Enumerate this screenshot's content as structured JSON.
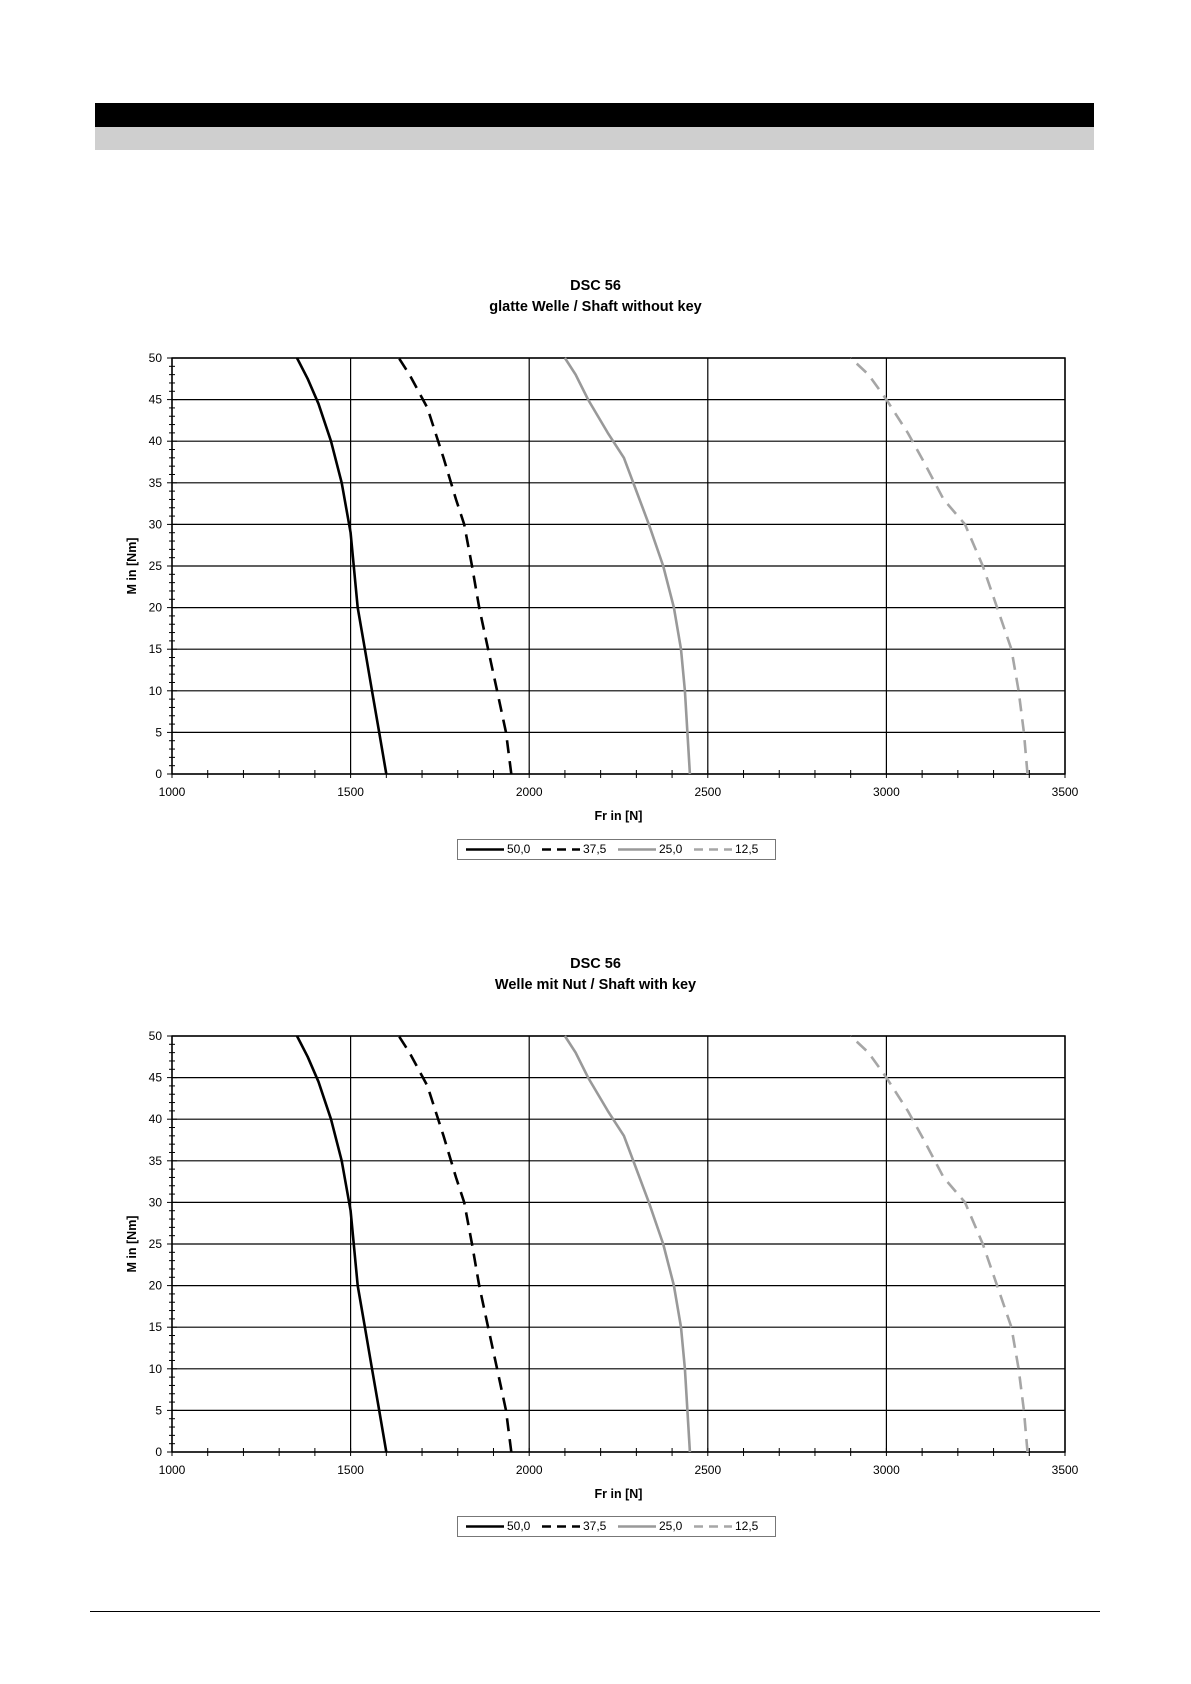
{
  "chart_data": [
    {
      "type": "line",
      "title": "DSC 56",
      "subtitle": "glatte Welle / Shaft without key",
      "xlabel": "Fr in [N]",
      "ylabel": "M in [Nm]",
      "xlim": [
        1000,
        3500
      ],
      "ylim": [
        0,
        50
      ],
      "xticks": [
        1000,
        1500,
        2000,
        2500,
        3000,
        3500
      ],
      "yticks": [
        0,
        5,
        10,
        15,
        20,
        25,
        30,
        35,
        40,
        45,
        50
      ],
      "grid": true,
      "legend_position": "bottom",
      "series": [
        {
          "name": "50,0",
          "color": "#000000",
          "style": "solid",
          "x": [
            1600,
            1580,
            1560,
            1540,
            1520,
            1500,
            1475,
            1445,
            1410,
            1380,
            1350
          ],
          "y": [
            0,
            5,
            10,
            15,
            20,
            29,
            35,
            40,
            44.5,
            47.5,
            50
          ]
        },
        {
          "name": "37,5",
          "color": "#000000",
          "style": "dashed",
          "x": [
            1950,
            1935,
            1910,
            1885,
            1860,
            1840,
            1818,
            1795,
            1760,
            1715,
            1665,
            1635
          ],
          "y": [
            0,
            5,
            10,
            15,
            20,
            25,
            30,
            33,
            38,
            44,
            48,
            50
          ]
        },
        {
          "name": "25,0",
          "color": "#999999",
          "style": "solid",
          "x": [
            2450,
            2443,
            2436,
            2425,
            2405,
            2375,
            2335,
            2265,
            2220,
            2165,
            2130,
            2100
          ],
          "y": [
            0,
            5,
            10,
            15,
            20,
            25,
            30,
            38,
            41,
            45,
            48,
            50
          ]
        },
        {
          "name": "12,5",
          "color": "#a6a6a6",
          "style": "dashed",
          "x": [
            3395,
            3385,
            3370,
            3350,
            3310,
            3270,
            3220,
            3160,
            3105,
            3060,
            3000,
            2950,
            2900
          ],
          "y": [
            0,
            5,
            10,
            15,
            20,
            25,
            30,
            33,
            37.5,
            41,
            45,
            48,
            50
          ]
        }
      ]
    },
    {
      "type": "line",
      "title": "DSC 56",
      "subtitle": "Welle mit Nut / Shaft with key",
      "xlabel": "Fr in [N]",
      "ylabel": "M in [Nm]",
      "xlim": [
        1000,
        3500
      ],
      "ylim": [
        0,
        50
      ],
      "xticks": [
        1000,
        1500,
        2000,
        2500,
        3000,
        3500
      ],
      "yticks": [
        0,
        5,
        10,
        15,
        20,
        25,
        30,
        35,
        40,
        45,
        50
      ],
      "grid": true,
      "legend_position": "bottom",
      "series": [
        {
          "name": "50,0",
          "color": "#000000",
          "style": "solid",
          "x": [
            1600,
            1580,
            1560,
            1540,
            1520,
            1500,
            1475,
            1445,
            1410,
            1380,
            1350
          ],
          "y": [
            0,
            5,
            10,
            15,
            20,
            29,
            35,
            40,
            44.5,
            47.5,
            50
          ]
        },
        {
          "name": "37,5",
          "color": "#000000",
          "style": "dashed",
          "x": [
            1950,
            1935,
            1910,
            1885,
            1860,
            1840,
            1818,
            1795,
            1760,
            1715,
            1665,
            1635
          ],
          "y": [
            0,
            5,
            10,
            15,
            20,
            25,
            30,
            33,
            38,
            44,
            48,
            50
          ]
        },
        {
          "name": "25,0",
          "color": "#999999",
          "style": "solid",
          "x": [
            2450,
            2443,
            2436,
            2425,
            2405,
            2375,
            2335,
            2265,
            2220,
            2165,
            2130,
            2100
          ],
          "y": [
            0,
            5,
            10,
            15,
            20,
            25,
            30,
            38,
            41,
            45,
            48,
            50
          ]
        },
        {
          "name": "12,5",
          "color": "#a6a6a6",
          "style": "dashed",
          "x": [
            3395,
            3385,
            3370,
            3350,
            3310,
            3270,
            3220,
            3160,
            3105,
            3060,
            3000,
            2950,
            2900
          ],
          "y": [
            0,
            5,
            10,
            15,
            20,
            25,
            30,
            33,
            37.5,
            41,
            45,
            48,
            50
          ]
        }
      ]
    }
  ]
}
